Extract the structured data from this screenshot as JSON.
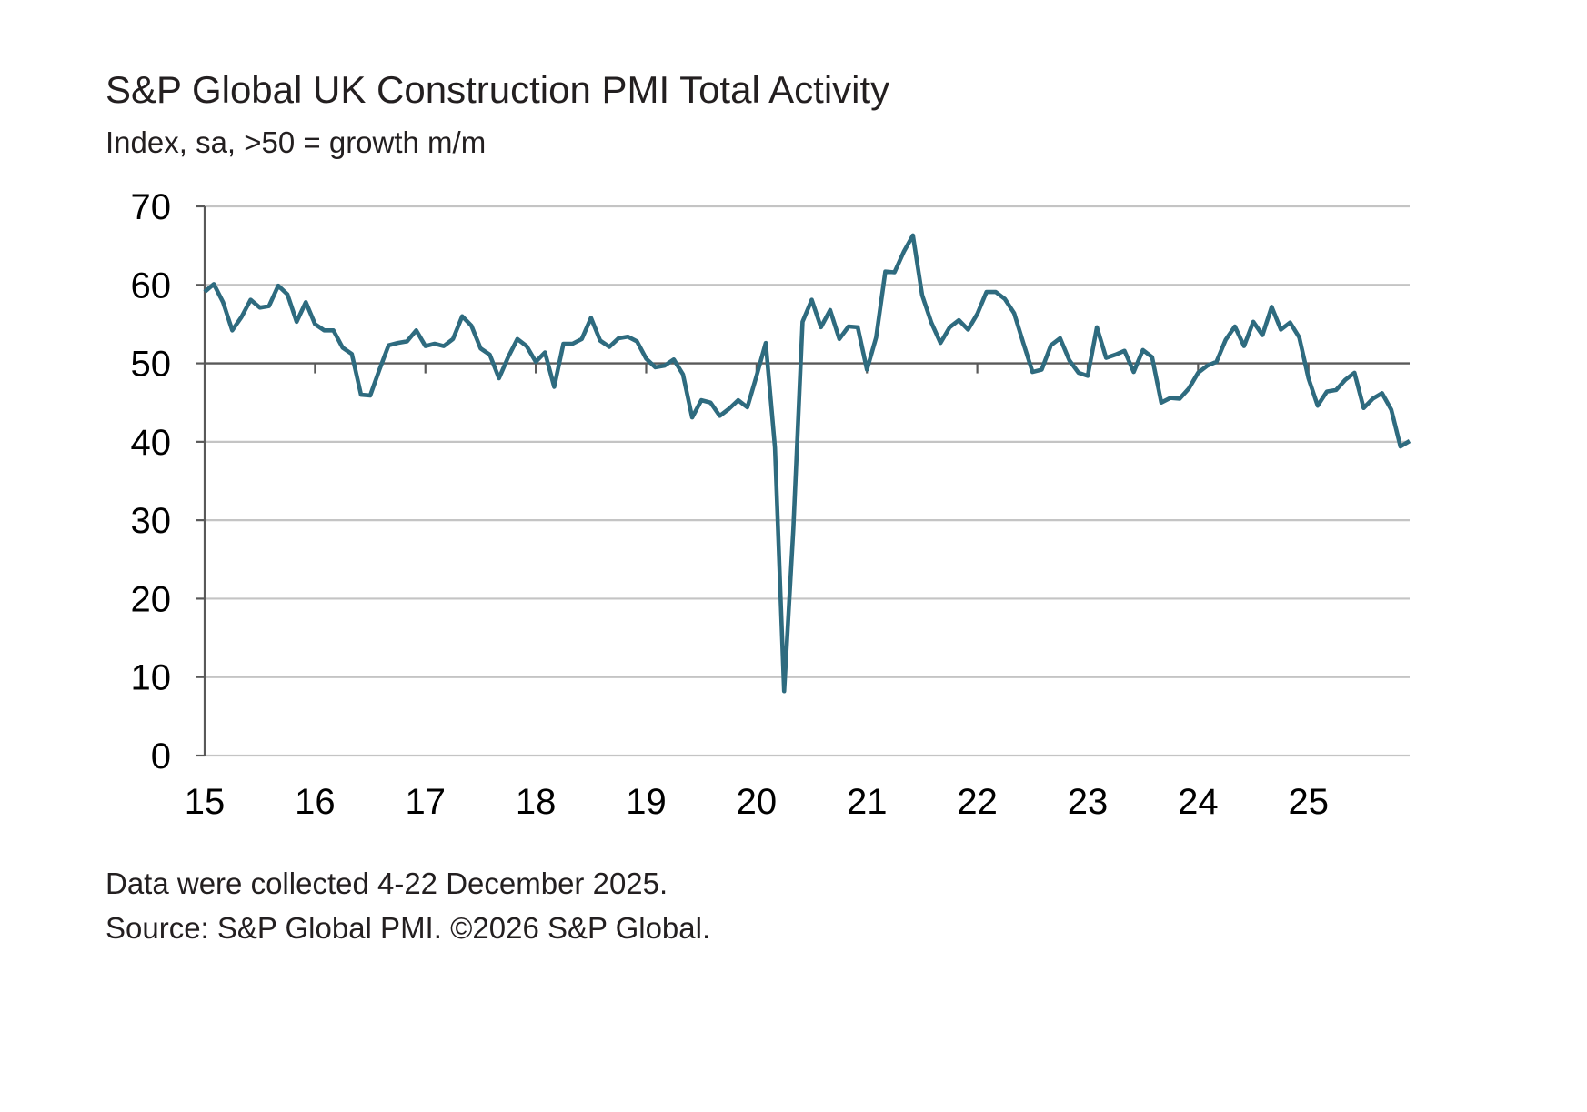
{
  "footnotes": [
    "Data were collected 4-22 December 2025.",
    "Source: S&P Global PMI. ©2026 S&P Global."
  ],
  "colors": {
    "series": "#2e6b7f",
    "grid": "#c4c4c4",
    "axis": "#595959",
    "text": "#231f20"
  },
  "chart_data": {
    "type": "line",
    "title": "S&P Global UK Construction PMI Total Activity",
    "subtitle": "Index, sa, >50 = growth m/m",
    "xlabel": "",
    "ylabel": "",
    "ylim": [
      0,
      70
    ],
    "y_ticks": [
      0,
      10,
      20,
      30,
      40,
      50,
      60,
      70
    ],
    "x_ticks": [
      "2015-01",
      "2016-01",
      "2017-01",
      "2018-01",
      "2019-01",
      "2020-01",
      "2021-01",
      "2022-01",
      "2023-01",
      "2024-01",
      "2025-01"
    ],
    "x_tick_labels": [
      "15",
      "16",
      "17",
      "18",
      "19",
      "20",
      "21",
      "22",
      "23",
      "24",
      "25"
    ],
    "x_axis_crosses_y": 50,
    "grid": true,
    "legend": "none",
    "x": [
      "2015-01",
      "2015-02",
      "2015-03",
      "2015-04",
      "2015-05",
      "2015-06",
      "2015-07",
      "2015-08",
      "2015-09",
      "2015-10",
      "2015-11",
      "2015-12",
      "2016-01",
      "2016-02",
      "2016-03",
      "2016-04",
      "2016-05",
      "2016-06",
      "2016-07",
      "2016-08",
      "2016-09",
      "2016-10",
      "2016-11",
      "2016-12",
      "2017-01",
      "2017-02",
      "2017-03",
      "2017-04",
      "2017-05",
      "2017-06",
      "2017-07",
      "2017-08",
      "2017-09",
      "2017-10",
      "2017-11",
      "2017-12",
      "2018-01",
      "2018-02",
      "2018-03",
      "2018-04",
      "2018-05",
      "2018-06",
      "2018-07",
      "2018-08",
      "2018-09",
      "2018-10",
      "2018-11",
      "2018-12",
      "2019-01",
      "2019-02",
      "2019-03",
      "2019-04",
      "2019-05",
      "2019-06",
      "2019-07",
      "2019-08",
      "2019-09",
      "2019-10",
      "2019-11",
      "2019-12",
      "2020-01",
      "2020-02",
      "2020-03",
      "2020-04",
      "2020-05",
      "2020-06",
      "2020-07",
      "2020-08",
      "2020-09",
      "2020-10",
      "2020-11",
      "2020-12",
      "2021-01",
      "2021-02",
      "2021-03",
      "2021-04",
      "2021-05",
      "2021-06",
      "2021-07",
      "2021-08",
      "2021-09",
      "2021-10",
      "2021-11",
      "2021-12",
      "2022-01",
      "2022-02",
      "2022-03",
      "2022-04",
      "2022-05",
      "2022-06",
      "2022-07",
      "2022-08",
      "2022-09",
      "2022-10",
      "2022-11",
      "2022-12",
      "2023-01",
      "2023-02",
      "2023-03",
      "2023-04",
      "2023-05",
      "2023-06",
      "2023-07",
      "2023-08",
      "2023-09",
      "2023-10",
      "2023-11",
      "2023-12",
      "2024-01",
      "2024-02",
      "2024-03",
      "2024-04",
      "2024-05",
      "2024-06",
      "2024-07",
      "2024-08",
      "2024-09",
      "2024-10",
      "2024-11",
      "2024-12",
      "2025-01",
      "2025-02",
      "2025-03",
      "2025-04",
      "2025-05",
      "2025-06",
      "2025-07",
      "2025-08",
      "2025-09",
      "2025-10",
      "2025-11",
      "2025-12"
    ],
    "series": [
      {
        "values": [
          59.1,
          60.1,
          57.8,
          54.2,
          55.9,
          58.1,
          57.1,
          57.3,
          59.9,
          58.8,
          55.3,
          57.8,
          55.0,
          54.2,
          54.2,
          52.0,
          51.2,
          46.0,
          45.9,
          49.2,
          52.3,
          52.6,
          52.8,
          54.2,
          52.2,
          52.5,
          52.2,
          53.1,
          56.0,
          54.8,
          51.9,
          51.1,
          48.1,
          50.8,
          53.1,
          52.2,
          50.2,
          51.4,
          47.0,
          52.5,
          52.5,
          53.1,
          55.8,
          52.9,
          52.1,
          53.2,
          53.4,
          52.8,
          50.6,
          49.5,
          49.7,
          50.5,
          48.6,
          43.1,
          45.3,
          45.0,
          43.3,
          44.2,
          45.3,
          44.4,
          48.4,
          52.6,
          39.3,
          8.2,
          28.9,
          55.3,
          58.1,
          54.6,
          56.8,
          53.1,
          54.7,
          54.6,
          49.2,
          53.3,
          61.7,
          61.6,
          64.2,
          66.3,
          58.7,
          55.2,
          52.6,
          54.6,
          55.5,
          54.3,
          56.3,
          59.1,
          59.1,
          58.2,
          56.4,
          52.6,
          48.9,
          49.2,
          52.3,
          53.2,
          50.4,
          48.8,
          48.4,
          54.6,
          50.7,
          51.1,
          51.6,
          48.9,
          51.7,
          50.8,
          45.0,
          45.6,
          45.5,
          46.8,
          48.8,
          49.7,
          50.2,
          53.0,
          54.7,
          52.2,
          55.3,
          53.6,
          57.2,
          54.3,
          55.2,
          53.3,
          48.1,
          44.6,
          46.4,
          46.6,
          47.9,
          48.8,
          44.3,
          45.5,
          46.2,
          44.1,
          39.4,
          40.1
        ]
      }
    ]
  }
}
